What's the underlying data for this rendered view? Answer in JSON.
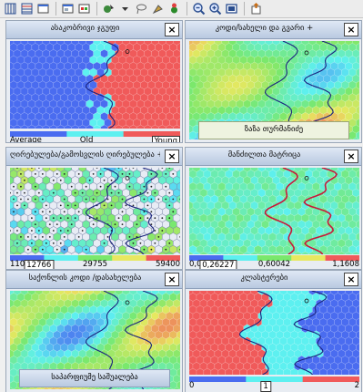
{
  "toolbar": {
    "buttons": [
      {
        "name": "grid-vertical-icon"
      },
      {
        "name": "grid-horizontal-icon"
      },
      {
        "name": "layout-icon"
      },
      {
        "sep": true
      },
      {
        "name": "window-icon"
      },
      {
        "name": "palette-icon"
      },
      {
        "sep": true
      },
      {
        "name": "cursor-select-icon"
      },
      {
        "name": "dropdown-arrow-icon"
      },
      {
        "name": "lasso-icon"
      },
      {
        "name": "paint-icon"
      },
      {
        "name": "color-picker-icon"
      },
      {
        "sep": true
      },
      {
        "name": "zoom-out-icon"
      },
      {
        "name": "zoom-in-icon"
      },
      {
        "name": "fit-window-icon"
      },
      {
        "sep": true
      },
      {
        "name": "export-icon"
      }
    ]
  },
  "colors": {
    "blue": "#4a6cf0",
    "cyan": "#5df0f0",
    "red": "#f05a5a",
    "green": "#7ae86c",
    "yellow": "#e8e860",
    "boundary": "#1a237e"
  },
  "panels": [
    {
      "id": "age",
      "title": "ასაკობრივი ჯგუფი",
      "close": "×",
      "colorbar": [
        "#4a6cf0",
        "#5df0f0",
        "#f05a5a"
      ],
      "labels": [
        {
          "text": "Average",
          "pos": "left"
        },
        {
          "text": "Old",
          "pos": "mid"
        },
        {
          "text": "Young",
          "pos": "right",
          "boxed": true
        }
      ]
    },
    {
      "id": "code",
      "title": "კოდი/სახელი და გვარი +",
      "close": "×",
      "float_label": "ზაზა თურმანიძე",
      "labels": []
    },
    {
      "id": "price",
      "title": "ღირებულება/გამოსვლის ღირებულება +",
      "close": "×",
      "colorbar": [
        "#4a6cf0",
        "#5df0f0",
        "#7ae86c",
        "#e8e860",
        "#f05a5a"
      ],
      "labels": [
        {
          "text": "110",
          "pos": "left"
        },
        {
          "text": "12766",
          "pos": "p20",
          "boxed": true
        },
        {
          "text": "29755",
          "pos": "p50"
        },
        {
          "text": "59400",
          "pos": "right"
        }
      ]
    },
    {
      "id": "distance",
      "title": "მანძილთა მატრიცა",
      "close": "×",
      "colorbar": [
        "#4a6cf0",
        "#5df0f0",
        "#7ae86c",
        "#e8e860",
        "#f05a5a"
      ],
      "labels": [
        {
          "text": "0,04",
          "pos": "left"
        },
        {
          "text": "0,26227",
          "pos": "p20",
          "boxed": true
        },
        {
          "text": "0,60042",
          "pos": "p50"
        },
        {
          "text": "1,1608",
          "pos": "right"
        }
      ]
    },
    {
      "id": "region",
      "title": "საქონლის კოდი /დასახელება",
      "close": "×",
      "float_label": "საპარფიუმე საშუალება",
      "labels": []
    },
    {
      "id": "cluster",
      "title": "კლასტერები",
      "close": "×",
      "colorbar": [
        "#4a6cf0",
        "#5df0f0",
        "#f05a5a"
      ],
      "labels": [
        {
          "text": "0",
          "pos": "left"
        },
        {
          "text": "1",
          "pos": "mid",
          "boxed": true
        },
        {
          "text": "2",
          "pos": "right"
        }
      ]
    }
  ]
}
